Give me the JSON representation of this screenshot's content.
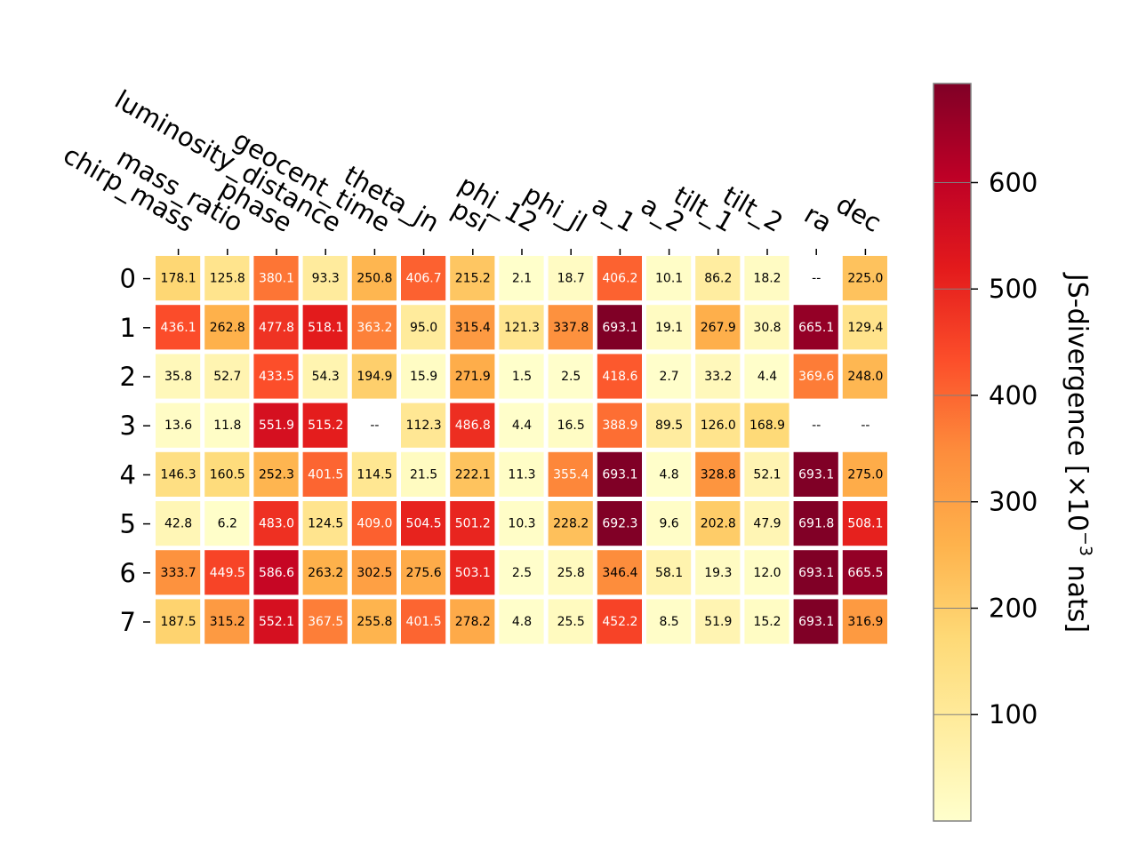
{
  "chart_data": {
    "type": "heatmap",
    "x_categories": [
      "chirp_mass",
      "mass_ratio",
      "phase",
      "luminosity_distance",
      "geocent_time",
      "theta_jn",
      "psi",
      "phi_12",
      "phi_jl",
      "a_1",
      "a_2",
      "tilt_1",
      "tilt_2",
      "ra",
      "dec"
    ],
    "y_categories": [
      "0",
      "1",
      "2",
      "3",
      "4",
      "5",
      "6",
      "7"
    ],
    "values": [
      [
        178.1,
        125.8,
        380.1,
        93.3,
        250.8,
        406.7,
        215.2,
        2.1,
        18.7,
        406.2,
        10.1,
        86.2,
        18.2,
        null,
        225.0
      ],
      [
        436.1,
        262.8,
        477.8,
        518.1,
        363.2,
        95.0,
        315.4,
        121.3,
        337.8,
        693.1,
        19.1,
        267.9,
        30.8,
        665.1,
        129.4
      ],
      [
        35.8,
        52.7,
        433.5,
        54.3,
        194.9,
        15.9,
        271.9,
        1.5,
        2.5,
        418.6,
        2.7,
        33.2,
        4.4,
        369.6,
        248.0
      ],
      [
        13.6,
        11.8,
        551.9,
        515.2,
        null,
        112.3,
        486.8,
        4.4,
        16.5,
        388.9,
        89.5,
        126.0,
        168.9,
        null,
        null
      ],
      [
        146.3,
        160.5,
        252.3,
        401.5,
        114.5,
        21.5,
        222.1,
        11.3,
        355.4,
        693.1,
        4.8,
        328.8,
        52.1,
        693.1,
        275.0
      ],
      [
        42.8,
        6.2,
        483.0,
        124.5,
        409.0,
        504.5,
        501.2,
        10.3,
        228.2,
        692.3,
        9.6,
        202.8,
        47.9,
        691.8,
        508.1
      ],
      [
        333.7,
        449.5,
        586.6,
        263.2,
        302.5,
        275.6,
        503.1,
        2.5,
        25.8,
        346.4,
        58.1,
        19.3,
        12.0,
        693.1,
        665.5
      ],
      [
        187.5,
        315.2,
        552.1,
        367.5,
        255.8,
        401.5,
        278.2,
        4.8,
        25.5,
        452.2,
        8.5,
        51.9,
        15.2,
        693.1,
        316.9
      ]
    ],
    "missing_label": "--",
    "colormap": "YlOrRd",
    "colorbar": {
      "label_main": "JS-divergence [×10",
      "label_exp": "−3",
      "label_end": " nats]",
      "range": [
        0,
        693.1
      ],
      "ticks": [
        100,
        200,
        300,
        400,
        500,
        600
      ],
      "tick_labels": [
        "100",
        "200",
        "300",
        "400",
        "500",
        "600"
      ]
    },
    "colors": {
      "text_dark": "#000000",
      "text_light": "#ffffff",
      "colorbar_border": "#808080"
    }
  }
}
